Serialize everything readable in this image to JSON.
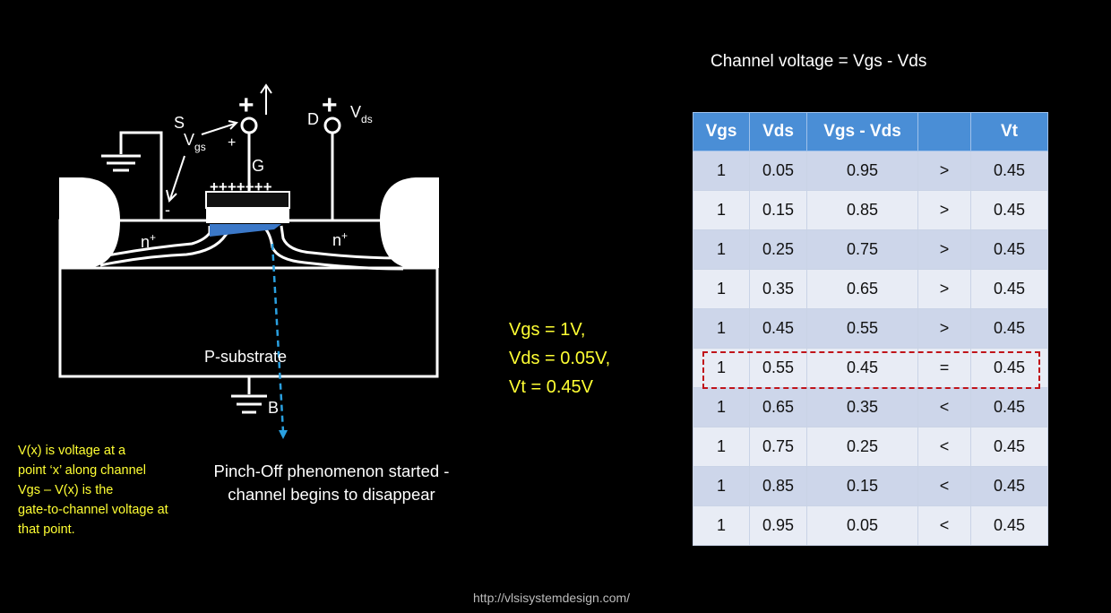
{
  "diagram": {
    "source": "S",
    "gate": "G",
    "drain": "D",
    "body": "B",
    "vgs_main": "V",
    "vgs_sub": "gs",
    "vds_main": "V",
    "vds_sub": "ds",
    "plus": "+",
    "minus": "-",
    "gate_charges": "+++++++",
    "n_left": "n",
    "n_right": "n",
    "n_sup": "+",
    "substrate": "P-substrate",
    "arrow_up": "↑"
  },
  "table": {
    "title": "Channel voltage = Vgs - Vds",
    "headers": [
      "Vgs",
      "Vds",
      "Vgs - Vds",
      "",
      "Vt"
    ],
    "rows": [
      [
        "1",
        "0.05",
        "0.95",
        ">",
        "0.45"
      ],
      [
        "1",
        "0.15",
        "0.85",
        ">",
        "0.45"
      ],
      [
        "1",
        "0.25",
        "0.75",
        ">",
        "0.45"
      ],
      [
        "1",
        "0.35",
        "0.65",
        ">",
        "0.45"
      ],
      [
        "1",
        "0.45",
        "0.55",
        ">",
        "0.45"
      ],
      [
        "1",
        "0.55",
        "0.45",
        "=",
        "0.45"
      ],
      [
        "1",
        "0.65",
        "0.35",
        "<",
        "0.45"
      ],
      [
        "1",
        "0.75",
        "0.25",
        "<",
        "0.45"
      ],
      [
        "1",
        "0.85",
        "0.15",
        "<",
        "0.45"
      ],
      [
        "1",
        "0.95",
        "0.05",
        "<",
        "0.45"
      ]
    ],
    "highlighted_row": 5
  },
  "params": {
    "vgs": "Vgs = 1V,",
    "vds": "Vds = 0.05V,",
    "vt": "Vt = 0.45V"
  },
  "note": {
    "line1": "V(x) is voltage at a",
    "line2": "point ‘x’ along channel",
    "line3": "Vgs – V(x) is the",
    "line4": "gate-to-channel voltage at",
    "line5": "that point."
  },
  "caption": {
    "line1": "Pinch-Off phenomenon started -",
    "line2": "channel begins to disappear"
  },
  "footer": {
    "url": "http://vlsisystemdesign.com/"
  },
  "colors": {
    "header_blue": "#4a8ed6",
    "row_dark": "#cdd6ea",
    "row_light": "#e8ecf5",
    "highlight_red": "#c0141a",
    "yellow_text": "#ffff33",
    "channel_blue": "#3b78c8",
    "probe_blue": "#2aa0e0"
  }
}
